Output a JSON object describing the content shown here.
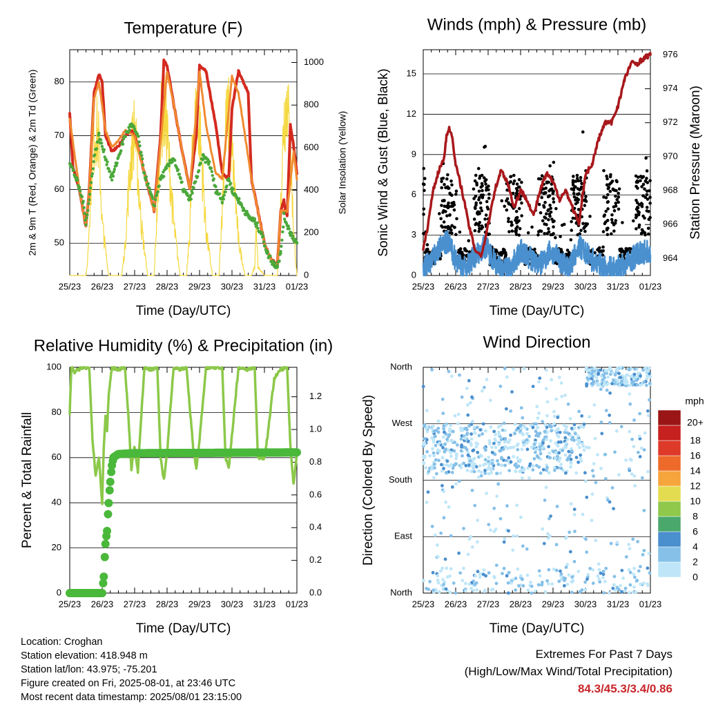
{
  "x_tick_labels": [
    "25/23",
    "26/23",
    "27/23",
    "28/23",
    "29/23",
    "30/23",
    "31/23",
    "01/23"
  ],
  "panels": {
    "temperature": {
      "title": "Temperature (F)",
      "xlabel": "Time (Day/UTC)",
      "ylabel_left": "2m & 9m T (Red, Orange) & 2m Td (Green)",
      "ylabel_right": "Solar Insolation (Yellow)",
      "yticks_left": [
        "50",
        "60",
        "70",
        "80"
      ],
      "yticks_right": [
        "0",
        "200",
        "400",
        "600",
        "800",
        "1000"
      ]
    },
    "winds": {
      "title": "Winds (mph) & Pressure (mb)",
      "xlabel": "Time (Day/UTC)",
      "ylabel_left": "Sonic Wind & Gust (Blue, Black)",
      "ylabel_right": "Station Pressure (Maroon)",
      "yticks_left": [
        "0",
        "3",
        "6",
        "9",
        "12",
        "15"
      ],
      "yticks_right": [
        "964",
        "966",
        "968",
        "970",
        "972",
        "974",
        "976"
      ]
    },
    "humidity": {
      "title": "Relative Humidity (%) & Precipitation (in)",
      "xlabel": "Time (Day/UTC)",
      "ylabel_left": "Percent & Total Rainfall",
      "yticks_left": [
        "0",
        "20",
        "40",
        "60",
        "80",
        "100"
      ],
      "yticks_right": [
        "0.0",
        "0.2",
        "0.4",
        "0.6",
        "0.8",
        "1.0",
        "1.2"
      ]
    },
    "direction": {
      "title": "Wind Direction",
      "xlabel": "Time (Day/UTC)",
      "ylabel_left": "Direction (Colored By Speed)",
      "yticks_left": [
        "North",
        "East",
        "South",
        "West",
        "North"
      ],
      "legend_title": "mph",
      "legend_labels": [
        "0",
        "2",
        "4",
        "6",
        "8",
        "10",
        "12",
        "14",
        "16",
        "18",
        "20+"
      ],
      "legend_colors": [
        "#bfe6f8",
        "#86c0e8",
        "#4a8fce",
        "#4aa86c",
        "#8fc84a",
        "#e4dc50",
        "#f6a43c",
        "#ee6a2a",
        "#dd3a2a",
        "#c6201f",
        "#9a1616"
      ]
    }
  },
  "info": {
    "location": "Location: Croghan",
    "elevation": "Station elevation: 418.948 m",
    "latlon": "Station lat/lon: 43.975; -75.201",
    "created": "Figure created on Fri, 2025-08-01, at 23:46 UTC",
    "recent": "Most recent data timestamp: 2025/08/01 23:15:00"
  },
  "extremes": {
    "title": "Extremes For Past 7 Days",
    "subtitle": "(High/Low/Max Wind/Total Precipitation)",
    "value": "84.3/45.3/3.4/0.86"
  },
  "chart_data": [
    {
      "type": "line",
      "xlim": [
        0,
        7.0
      ],
      "ylim": [
        44,
        86
      ],
      "y2lim": [
        0,
        1060
      ],
      "series": [
        {
          "color": "#d42a20",
          "x": [
            0,
            0.1,
            0.3,
            0.5,
            0.6,
            0.75,
            0.9,
            1.0,
            1.1,
            1.3,
            1.5,
            1.7,
            1.9,
            2.0,
            2.1,
            2.3,
            2.6,
            2.8,
            2.9,
            3.0,
            3.2,
            3.5,
            3.7,
            3.9,
            4.0,
            4.2,
            4.5,
            4.7,
            4.9,
            5.0,
            5.2,
            5.5,
            5.6,
            5.8,
            6.0,
            6.2,
            6.4,
            6.5,
            6.6,
            6.65,
            6.7,
            6.8,
            6.9,
            7.0
          ],
          "y": [
            74,
            64,
            60,
            53,
            60,
            78,
            81.5,
            80,
            70,
            67,
            68,
            70,
            71,
            70,
            68,
            63,
            56,
            70,
            84,
            83,
            76,
            66,
            60,
            70,
            83,
            82,
            72,
            63,
            62,
            75,
            82,
            78,
            62,
            56,
            50,
            47,
            46,
            56,
            58,
            56,
            55,
            72,
            68,
            63
          ]
        },
        {
          "color": "#f08a30",
          "x": [
            0,
            0.3,
            0.5,
            0.6,
            0.75,
            0.9,
            1.1,
            1.3,
            1.5,
            1.7,
            2.0,
            2.3,
            2.6,
            2.8,
            3.0,
            3.2,
            3.5,
            3.7,
            4.0,
            4.2,
            4.5,
            4.7,
            5.0,
            5.2,
            5.6,
            5.8,
            6.0,
            6.2,
            6.4,
            6.5,
            6.7,
            6.9,
            7.0
          ],
          "y": [
            73,
            60,
            53,
            60,
            77,
            80,
            71,
            68,
            69,
            71,
            70,
            63,
            56,
            69,
            82,
            76,
            66,
            60,
            82,
            72,
            63,
            62,
            81,
            78,
            62,
            56,
            50,
            47,
            46,
            56,
            56,
            67,
            62
          ]
        },
        {
          "color": "#4aa83a",
          "x": [
            0,
            0.2,
            0.4,
            0.5,
            0.6,
            0.75,
            0.9,
            1.1,
            1.3,
            1.5,
            1.7,
            1.9,
            2.1,
            2.3,
            2.6,
            2.8,
            3.0,
            3.2,
            3.5,
            3.7,
            3.9,
            4.1,
            4.3,
            4.5,
            4.7,
            4.9,
            5.0,
            5.2,
            5.5,
            5.7,
            5.9,
            6.1,
            6.3,
            6.4,
            6.5,
            6.6,
            6.8,
            7.0
          ],
          "y": [
            65,
            62,
            58,
            54,
            58,
            66,
            70,
            66,
            62,
            66,
            70,
            72,
            70,
            63,
            57,
            62,
            64,
            66,
            60,
            58,
            62,
            66,
            65,
            60,
            58,
            62,
            60,
            58,
            55,
            54,
            52,
            48,
            46,
            46,
            48,
            55,
            52,
            50
          ]
        }
      ],
      "insolation": {
        "color": "#f5d840",
        "x": [
          0,
          0.2,
          0.3,
          0.4,
          0.5,
          0.55,
          0.6,
          0.7,
          0.8,
          0.9,
          1.0,
          1.2,
          1.4,
          1.6,
          1.7,
          1.8,
          1.9,
          2.0,
          2.2,
          2.4,
          2.6,
          2.7,
          2.8,
          2.9,
          3.0,
          3.2,
          3.4,
          3.6,
          3.7,
          3.8,
          3.9,
          4.0,
          4.2,
          4.4,
          4.6,
          4.7,
          4.8,
          4.9,
          5.0,
          5.2,
          5.4,
          5.6,
          5.7,
          5.75,
          5.8,
          6.0,
          6.2,
          6.4,
          6.5,
          6.6,
          6.7,
          6.8,
          6.9,
          7.0
        ],
        "y": [
          0,
          0,
          0,
          0,
          0,
          80,
          300,
          700,
          850,
          750,
          300,
          0,
          0,
          0,
          150,
          450,
          700,
          850,
          300,
          0,
          0,
          400,
          850,
          950,
          800,
          300,
          0,
          0,
          250,
          800,
          900,
          850,
          250,
          0,
          0,
          400,
          850,
          900,
          700,
          200,
          0,
          0,
          50,
          300,
          50,
          0,
          0,
          0,
          400,
          900,
          1000,
          700,
          250,
          0
        ]
      }
    },
    {
      "type": "line",
      "xlim": [
        0,
        7.0
      ],
      "ylim": [
        0,
        16.8
      ],
      "y2lim": [
        963,
        976.3
      ],
      "series": [
        {
          "name_hint": "pressure",
          "color": "#a8181c",
          "x": [
            0,
            0.15,
            0.3,
            0.45,
            0.55,
            0.65,
            0.7,
            0.8,
            0.9,
            1.0,
            1.2,
            1.4,
            1.6,
            1.8,
            2.0,
            2.2,
            2.4,
            2.6,
            2.8,
            3.0,
            3.2,
            3.4,
            3.6,
            3.8,
            4.0,
            4.2,
            4.4,
            4.6,
            4.8,
            5.0,
            5.2,
            5.4,
            5.6,
            5.8,
            6.0,
            6.2,
            6.4,
            6.6,
            6.8,
            7.0
          ],
          "y": [
            964.5,
            966,
            968,
            969,
            969.5,
            970,
            971,
            971.8,
            971,
            969.5,
            968,
            966,
            964.5,
            964.2,
            966,
            968,
            969.2,
            968.5,
            967,
            968,
            967.5,
            966.5,
            968,
            969,
            968.5,
            967.5,
            968,
            967,
            966,
            969,
            969.5,
            971,
            972,
            972,
            973,
            974.5,
            975.5,
            975.5,
            975.8,
            976
          ]
        },
        {
          "name_hint": "wind",
          "color": "#4a90cf",
          "x": [
            0,
            0.3,
            0.5,
            0.75,
            1.0,
            1.3,
            1.6,
            1.9,
            2.1,
            2.4,
            2.7,
            3.0,
            3.3,
            3.6,
            3.9,
            4.2,
            4.5,
            4.8,
            5.1,
            5.4,
            5.7,
            6.0,
            6.3,
            6.6,
            6.9,
            7.0
          ],
          "y": [
            0.5,
            1.2,
            2,
            2.5,
            1.2,
            0.5,
            1.5,
            2.2,
            1.5,
            0.4,
            0.6,
            1.8,
            1.3,
            0.8,
            1.8,
            1.2,
            0.5,
            2.2,
            1.4,
            0.8,
            0.5,
            0.6,
            0.9,
            1.6,
            1.8,
            1.5
          ]
        }
      ]
    },
    {
      "type": "line",
      "xlim": [
        0,
        7.0
      ],
      "ylim": [
        0,
        100
      ],
      "y2lim": [
        0,
        1.38
      ],
      "series": [
        {
          "color": "#8cc84a",
          "x": [
            0,
            0.05,
            0.15,
            0.4,
            0.6,
            0.7,
            0.8,
            0.9,
            1.0,
            1.05,
            1.1,
            1.15,
            1.2,
            1.3,
            1.5,
            1.7,
            1.8,
            1.9,
            2.0,
            2.1,
            2.3,
            2.5,
            2.7,
            2.8,
            2.9,
            3.0,
            3.2,
            3.4,
            3.6,
            3.8,
            3.9,
            4.0,
            4.2,
            4.5,
            4.7,
            4.8,
            4.9,
            5.0,
            5.2,
            5.5,
            5.7,
            5.8,
            6.0,
            6.1,
            6.3,
            6.5,
            6.7,
            6.8,
            6.9,
            7.0
          ],
          "y": [
            80,
            100,
            98,
            100,
            100,
            68,
            52,
            60,
            40,
            65,
            78,
            72,
            88,
            100,
            99,
            100,
            80,
            55,
            65,
            54,
            100,
            99,
            100,
            60,
            50,
            62,
            100,
            99,
            100,
            65,
            55,
            68,
            100,
            100,
            100,
            60,
            55,
            70,
            100,
            99,
            100,
            60,
            60,
            70,
            95,
            99,
            100,
            65,
            48,
            62
          ]
        },
        {
          "color": "#4ab83a",
          "x": [
            0,
            0.9,
            1.0,
            1.05,
            1.1,
            1.15,
            1.2,
            1.25,
            1.3,
            1.35,
            1.5,
            2.0,
            7.0
          ],
          "y": [
            0,
            0,
            0,
            0.1,
            0.3,
            0.38,
            0.55,
            0.68,
            0.78,
            0.83,
            0.85,
            0.855,
            0.86
          ]
        }
      ]
    },
    {
      "type": "scatter",
      "xlim": [
        0,
        7.0
      ],
      "ylim": [
        0,
        360
      ],
      "description_hint": "wind direction dots colored by speed, clusters near South-West by day, North at end"
    }
  ]
}
